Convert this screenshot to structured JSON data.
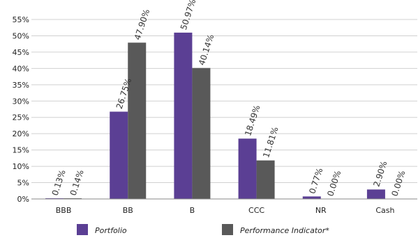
{
  "chart_data": {
    "type": "bar",
    "categories": [
      "BBB",
      "BB",
      "B",
      "CCC",
      "NR",
      "Cash"
    ],
    "series": [
      {
        "name": "Portfolio",
        "values": [
          0.13,
          26.75,
          50.97,
          18.49,
          0.77,
          2.9
        ],
        "labels": [
          "0.13%",
          "26.75%",
          "50.97%",
          "18.49%",
          "0.77%",
          "2.90%"
        ],
        "color": "#5b3f94"
      },
      {
        "name": "Performance Indicator*",
        "values": [
          0.14,
          47.9,
          40.14,
          11.81,
          0.0,
          0.0
        ],
        "labels": [
          "0.14%",
          "47.90%",
          "40.14%",
          "11.81%",
          "0.00%",
          "0.00%"
        ],
        "color": "#595959"
      }
    ],
    "ylim": [
      0,
      55
    ],
    "yticks": [
      0,
      5,
      10,
      15,
      20,
      25,
      30,
      35,
      40,
      45,
      50,
      55
    ],
    "ytick_labels": [
      "0%",
      "5%",
      "10%",
      "15%",
      "20%",
      "25%",
      "30%",
      "35%",
      "40%",
      "45%",
      "50%",
      "55%"
    ],
    "grid": true,
    "legend": "bottom",
    "title": "",
    "xlabel": "",
    "ylabel": ""
  }
}
